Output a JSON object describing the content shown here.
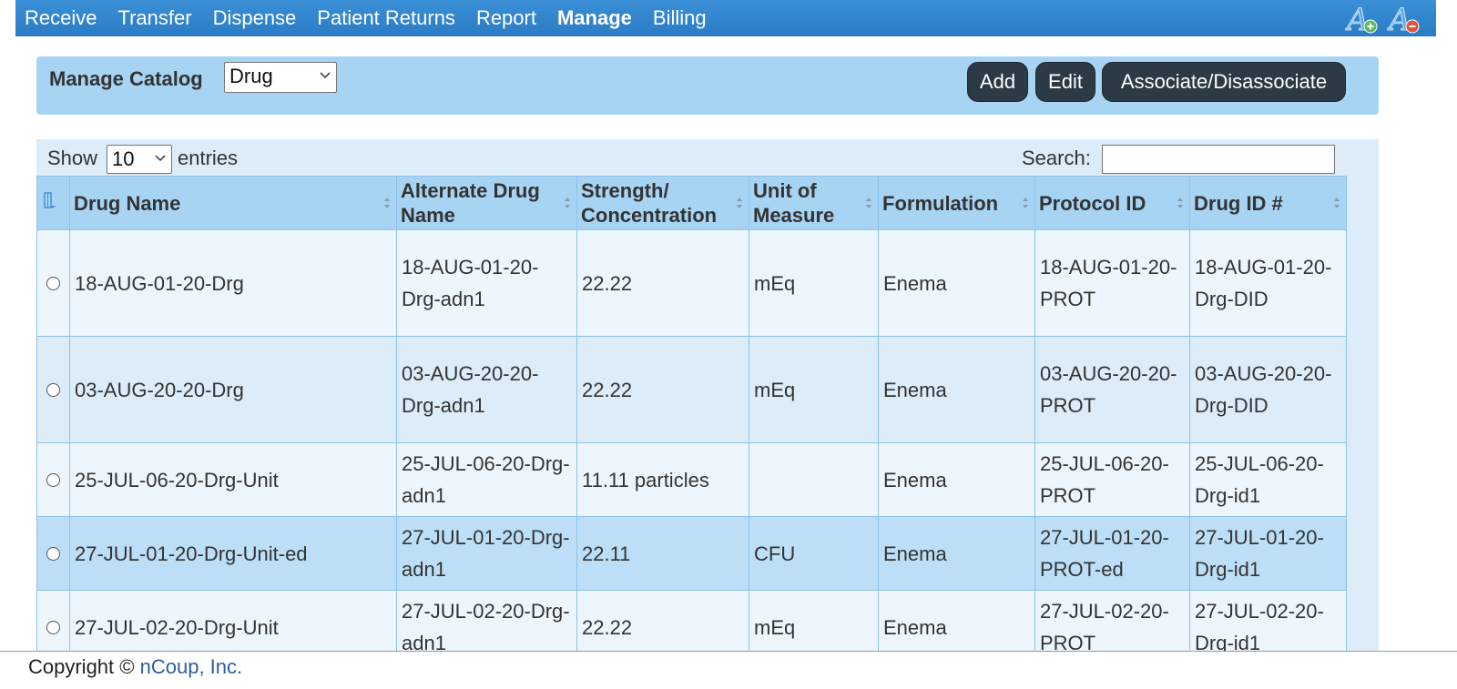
{
  "nav": {
    "items": [
      {
        "label": "Receive",
        "active": false
      },
      {
        "label": "Transfer",
        "active": false
      },
      {
        "label": "Dispense",
        "active": false
      },
      {
        "label": "Patient Returns",
        "active": false
      },
      {
        "label": "Report",
        "active": false
      },
      {
        "label": "Manage",
        "active": true
      },
      {
        "label": "Billing",
        "active": false
      }
    ],
    "font_tools": [
      "font-increase-icon",
      "font-decrease-icon"
    ]
  },
  "catalog": {
    "label": "Manage Catalog",
    "selected": "Drug",
    "buttons": {
      "add": "Add",
      "edit": "Edit",
      "associate": "Associate/Disassociate"
    }
  },
  "table_controls": {
    "show_label": "Show",
    "page_size": "10",
    "entries_label": "entries",
    "search_label": "Search:",
    "search_value": ""
  },
  "table": {
    "columns": [
      "Drug Name",
      "Alternate Drug Name",
      "Strength/ Concentration",
      "Unit of Measure",
      "Formulation",
      "Protocol ID",
      "Drug ID #"
    ],
    "rows": [
      {
        "drug_name": "18-AUG-01-20-Drg",
        "alt_name": "18-AUG-01-20-Drg-adn1",
        "strength": "22.22",
        "unit": "mEq",
        "formulation": "Enema",
        "protocol_id": "18-AUG-01-20-PROT",
        "drug_id": "18-AUG-01-20-Drg-DID"
      },
      {
        "drug_name": "03-AUG-20-20-Drg",
        "alt_name": "03-AUG-20-20-Drg-adn1",
        "strength": "22.22",
        "unit": "mEq",
        "formulation": "Enema",
        "protocol_id": "03-AUG-20-20-PROT",
        "drug_id": "03-AUG-20-20-Drg-DID"
      },
      {
        "drug_name": "25-JUL-06-20-Drg-Unit",
        "alt_name": "25-JUL-06-20-Drg-adn1",
        "strength": "11.11 particles",
        "unit": "",
        "formulation": "Enema",
        "protocol_id": "25-JUL-06-20-PROT",
        "drug_id": "25-JUL-06-20-Drg-id1"
      },
      {
        "drug_name": "27-JUL-01-20-Drg-Unit-ed",
        "alt_name": "27-JUL-01-20-Drg-adn1",
        "strength": "22.11",
        "unit": "CFU",
        "formulation": "Enema",
        "protocol_id": "27-JUL-01-20-PROT-ed",
        "drug_id": "27-JUL-01-20-Drg-id1"
      },
      {
        "drug_name": "27-JUL-02-20-Drg-Unit",
        "alt_name": "27-JUL-02-20-Drg-adn1",
        "strength": "22.22",
        "unit": "mEq",
        "formulation": "Enema",
        "protocol_id": "27-JUL-02-20-PROT",
        "drug_id": "27-JUL-02-20-Drg-id1"
      }
    ]
  },
  "footer": {
    "copyright": "Copyright ©",
    "company": "nCoup, Inc."
  },
  "colors": {
    "nav_bg": "#2b7cc4",
    "panel_bg": "#a8d4f4",
    "button_bg": "#2b3a44",
    "row_selected": "#bcdff7"
  }
}
